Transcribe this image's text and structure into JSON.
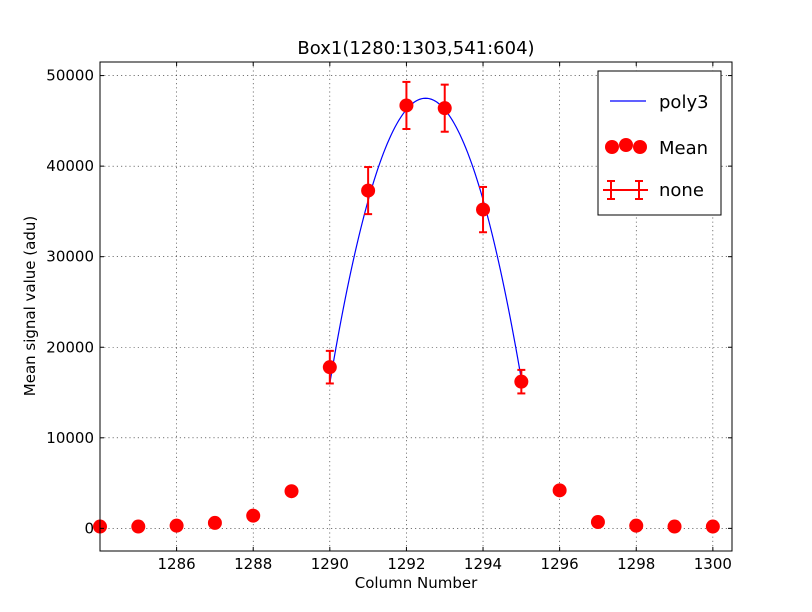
{
  "chart_data": {
    "type": "scatter",
    "title": "Box1(1280:1303,541:604)",
    "xlabel": "Column Number",
    "ylabel": "Mean signal value (adu)",
    "xlim": [
      1284,
      1300.5
    ],
    "ylim": [
      -2500,
      51500
    ],
    "xticks": [
      1286,
      1288,
      1290,
      1292,
      1294,
      1296,
      1298,
      1300
    ],
    "yticks": [
      0,
      10000,
      20000,
      30000,
      40000,
      50000
    ],
    "grid": true,
    "legend_position": "top-right",
    "colors": {
      "points": "#ff0000",
      "errorbars": "#ff0000",
      "fit": "#0000ff"
    },
    "series": [
      {
        "name": "Mean",
        "kind": "points",
        "x": [
          1284,
          1285,
          1286,
          1287,
          1288,
          1289,
          1290,
          1291,
          1292,
          1293,
          1294,
          1295,
          1296,
          1297,
          1298,
          1299,
          1300
        ],
        "y": [
          200,
          200,
          300,
          600,
          1400,
          4100,
          17800,
          37300,
          46700,
          46400,
          35200,
          16200,
          4200,
          700,
          300,
          200,
          200
        ]
      },
      {
        "name": "none",
        "kind": "errorbars",
        "x": [
          1290,
          1291,
          1292,
          1293,
          1294,
          1295
        ],
        "y": [
          17800,
          37300,
          46700,
          46400,
          35200,
          16200
        ],
        "yerr": [
          1800,
          2600,
          2600,
          2600,
          2500,
          1300
        ]
      },
      {
        "name": "poly3",
        "kind": "line",
        "coefficients_centered_1292.5": [
          47500,
          0,
          -5000,
          15
        ],
        "x_range": [
          1290,
          1295
        ]
      }
    ]
  }
}
